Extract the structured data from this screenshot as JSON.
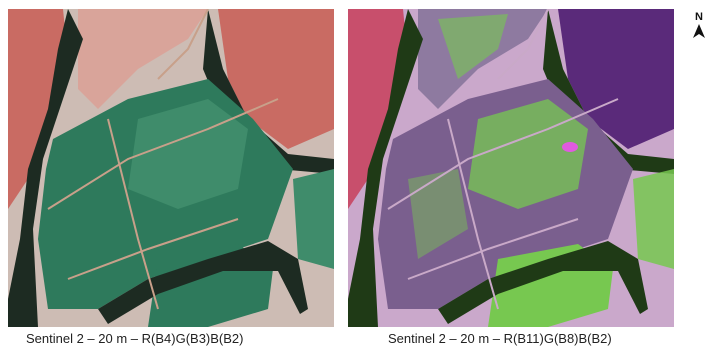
{
  "panels": [
    {
      "id": "rgb432",
      "caption": "Sentinel 2 – 20 m – R(B4)G(B3)B(B2)",
      "colors": {
        "field": "#2e7a5c",
        "field_light": "#3f8c6b",
        "bare": "#c96b63",
        "bare_light": "#d9a49a",
        "forest": "#1d2b22",
        "road": "#c8a08a",
        "pale": "#cdbcb4"
      }
    },
    {
      "id": "rgb1184",
      "caption": "Sentinel 2 – 20 m – R(B11)G(B8)B(B2)",
      "colors": {
        "field": "#7a5f8e",
        "field_light": "#77c850",
        "bare": "#c84f6c",
        "bare_light": "#c89ac4",
        "forest": "#1f3a16",
        "road": "#c9a9c8",
        "pale": "#caa8cb"
      }
    }
  ],
  "north_arrow": {
    "label": "N"
  }
}
